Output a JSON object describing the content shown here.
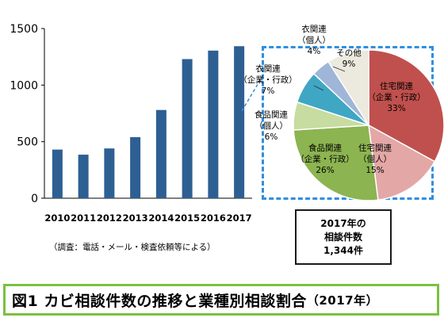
{
  "chart_data": [
    {
      "type": "bar",
      "categories": [
        "2010",
        "2011",
        "2012",
        "2013",
        "2014",
        "2015",
        "2016",
        "2017"
      ],
      "values": [
        430,
        385,
        440,
        540,
        780,
        1230,
        1305,
        1344
      ],
      "ylim": [
        0,
        1500
      ],
      "yticks": [
        "0",
        "500",
        "1000",
        "1500"
      ],
      "ytick_values": [
        0,
        500,
        1000,
        1500
      ],
      "grid": false,
      "bar_color": "#2e5f93"
    },
    {
      "type": "pie",
      "slices": [
        {
          "label_lines": [
            "住宅関連",
            "（企業・行政）",
            "33%"
          ],
          "value": 33,
          "color": "#c0504d"
        },
        {
          "label_lines": [
            "住宅関連",
            "（個人）",
            "15%"
          ],
          "value": 15,
          "color": "#e3a7a6"
        },
        {
          "label_lines": [
            "食品関連",
            "（企業・行政）",
            "26%"
          ],
          "value": 26,
          "color": "#8cb450"
        },
        {
          "label_lines": [
            "食品関連",
            "（個人）",
            "6%"
          ],
          "value": 6,
          "color": "#c6dca0"
        },
        {
          "label_lines": [
            "衣関連",
            "（企業・行政）",
            "7%"
          ],
          "value": 7,
          "color": "#3fa6c4"
        },
        {
          "label_lines": [
            "衣関連",
            "（個人）",
            "4%"
          ],
          "value": 4,
          "color": "#9fb6d8"
        },
        {
          "label_lines": [
            "その他",
            "9%"
          ],
          "value": 9,
          "color": "#ece9de"
        }
      ]
    }
  ],
  "total_box": {
    "line1": "2017年の",
    "line2": "相談件数",
    "line3": "1,344件"
  },
  "note": "（調査：電話・メール・検査依頼等による）",
  "caption": {
    "main": "図1 カビ相談件数の推移と業種別相談割合",
    "year": "（2017年）"
  }
}
